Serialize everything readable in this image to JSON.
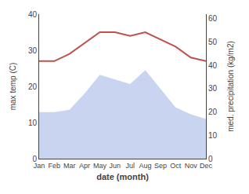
{
  "chart_data": {
    "type": "line",
    "categories": [
      "Jan",
      "Feb",
      "Mar",
      "Apr",
      "May",
      "Jun",
      "Jul",
      "Aug",
      "Sep",
      "Oct",
      "Nov",
      "Dec"
    ],
    "xlabel": "date (month)",
    "ylabel": "max temp (C)",
    "y2label": "med. precipitation (kg/m2)",
    "series": [
      {
        "type": "area",
        "axis": "y2",
        "color": "#c8d4f0",
        "values": [
          20,
          20,
          21,
          28,
          36,
          34,
          32,
          38,
          30,
          22,
          19,
          17
        ]
      },
      {
        "type": "line",
        "color": "#c0504d",
        "values": [
          27,
          27,
          29,
          32,
          35,
          35,
          34,
          35,
          33,
          31,
          28,
          27
        ]
      }
    ],
    "ylim": [
      0,
      40
    ],
    "yticks": [
      0,
      10,
      20,
      30,
      40
    ],
    "y2lim": [
      0,
      62
    ],
    "y2ticks": [
      0,
      10,
      20,
      30,
      40,
      50,
      60
    ],
    "grid": false
  }
}
